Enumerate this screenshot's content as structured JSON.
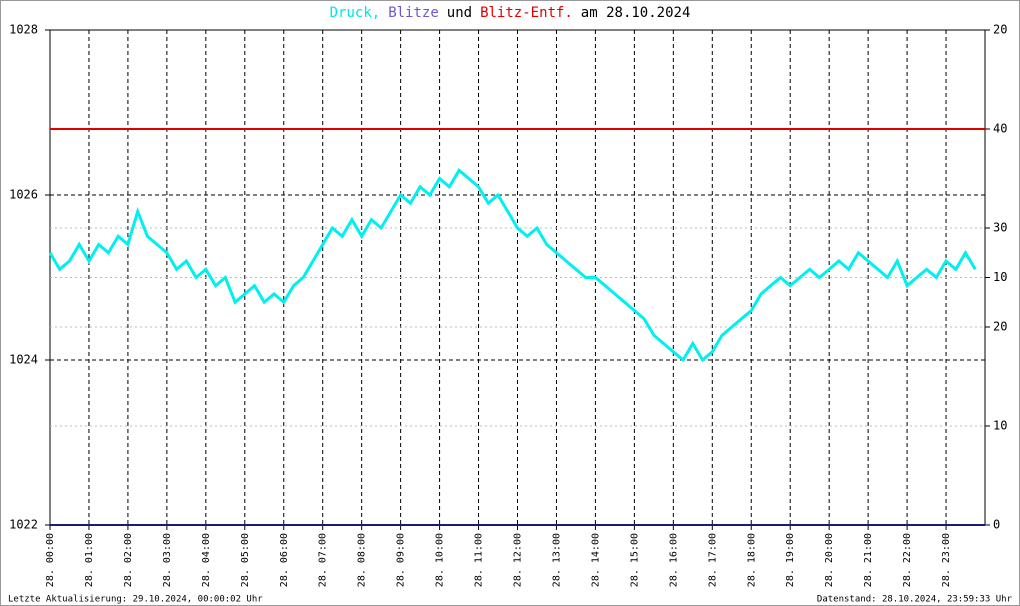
{
  "chart_data": {
    "type": "line",
    "title": [
      {
        "text": "Druck,",
        "color": "#00e5e5"
      },
      {
        "text": "Blitze",
        "color": "#6a5acd"
      },
      {
        "text": "und",
        "color": "#000000"
      },
      {
        "text": "Blitz-Entf.",
        "color": "#e00000"
      },
      {
        "text": "am 28.10.2024",
        "color": "#000000"
      }
    ],
    "xlim": [
      0,
      24
    ],
    "xticks": [
      {
        "value": 0,
        "label": "28. 00:00"
      },
      {
        "value": 1,
        "label": "28. 01:00"
      },
      {
        "value": 2,
        "label": "28. 02:00"
      },
      {
        "value": 3,
        "label": "28. 03:00"
      },
      {
        "value": 4,
        "label": "28. 04:00"
      },
      {
        "value": 5,
        "label": "28. 05:00"
      },
      {
        "value": 6,
        "label": "28. 06:00"
      },
      {
        "value": 7,
        "label": "28. 07:00"
      },
      {
        "value": 8,
        "label": "28. 08:00"
      },
      {
        "value": 9,
        "label": "28. 09:00"
      },
      {
        "value": 10,
        "label": "28. 10:00"
      },
      {
        "value": 11,
        "label": "28. 11:00"
      },
      {
        "value": 12,
        "label": "28. 12:00"
      },
      {
        "value": 13,
        "label": "28. 13:00"
      },
      {
        "value": 14,
        "label": "28. 14:00"
      },
      {
        "value": 15,
        "label": "28. 15:00"
      },
      {
        "value": 16,
        "label": "28. 16:00"
      },
      {
        "value": 17,
        "label": "28. 17:00"
      },
      {
        "value": 18,
        "label": "28. 18:00"
      },
      {
        "value": 19,
        "label": "28. 19:00"
      },
      {
        "value": 20,
        "label": "28. 20:00"
      },
      {
        "value": 21,
        "label": "28. 21:00"
      },
      {
        "value": 22,
        "label": "28. 22:00"
      },
      {
        "value": 23,
        "label": "28. 23:00"
      }
    ],
    "ylim": [
      1022,
      1028
    ],
    "yticks": [
      1022,
      1024,
      1026,
      1028
    ],
    "y2lim": [
      0,
      20
    ],
    "y2ticks": [
      10,
      20
    ],
    "y3lim": [
      0,
      50
    ],
    "y3ticks": [
      0,
      10,
      20,
      30,
      40
    ],
    "grid": true,
    "series": [
      {
        "name": "Druck",
        "color": "#00f0f0",
        "axis": "y",
        "x": [
          0,
          0.25,
          0.5,
          0.75,
          1,
          1.25,
          1.5,
          1.75,
          2,
          2.25,
          2.5,
          2.75,
          3,
          3.25,
          3.5,
          3.75,
          4,
          4.25,
          4.5,
          4.75,
          5,
          5.25,
          5.5,
          5.75,
          6,
          6.25,
          6.5,
          6.75,
          7,
          7.25,
          7.5,
          7.75,
          8,
          8.25,
          8.5,
          8.75,
          9,
          9.25,
          9.5,
          9.75,
          10,
          10.25,
          10.5,
          10.75,
          11,
          11.25,
          11.5,
          11.75,
          12,
          12.25,
          12.5,
          12.75,
          13,
          13.25,
          13.5,
          13.75,
          14,
          14.25,
          14.5,
          14.75,
          15,
          15.25,
          15.5,
          15.75,
          16,
          16.25,
          16.5,
          16.75,
          17,
          17.25,
          17.5,
          17.75,
          18,
          18.25,
          18.5,
          18.75,
          19,
          19.25,
          19.5,
          19.75,
          20,
          20.25,
          20.5,
          20.75,
          21,
          21.25,
          21.5,
          21.75,
          22,
          22.25,
          22.5,
          22.75,
          23,
          23.25,
          23.5,
          23.75
        ],
        "values": [
          1025.3,
          1025.1,
          1025.2,
          1025.4,
          1025.2,
          1025.4,
          1025.3,
          1025.5,
          1025.4,
          1025.8,
          1025.5,
          1025.4,
          1025.3,
          1025.1,
          1025.2,
          1025.0,
          1025.1,
          1024.9,
          1025.0,
          1024.7,
          1024.8,
          1024.9,
          1024.7,
          1024.8,
          1024.7,
          1024.9,
          1025.0,
          1025.2,
          1025.4,
          1025.6,
          1025.5,
          1025.7,
          1025.5,
          1025.7,
          1025.6,
          1025.8,
          1026.0,
          1025.9,
          1026.1,
          1026.0,
          1026.2,
          1026.1,
          1026.3,
          1026.2,
          1026.1,
          1025.9,
          1026.0,
          1025.8,
          1025.6,
          1025.5,
          1025.6,
          1025.4,
          1025.3,
          1025.2,
          1025.1,
          1025.0,
          1025.0,
          1024.9,
          1024.8,
          1024.7,
          1024.6,
          1024.5,
          1024.3,
          1024.2,
          1024.1,
          1024.0,
          1024.2,
          1024.0,
          1024.1,
          1024.3,
          1024.4,
          1024.5,
          1024.6,
          1024.8,
          1024.9,
          1025.0,
          1024.9,
          1025.0,
          1025.1,
          1025.0,
          1025.1,
          1025.2,
          1025.1,
          1025.3,
          1025.2,
          1025.1,
          1025.0,
          1025.2,
          1024.9,
          1025.0,
          1025.1,
          1025.0,
          1025.2,
          1025.1,
          1025.3,
          1025.1
        ]
      },
      {
        "name": "Blitze",
        "color": "#1a1a7a",
        "axis": "y2",
        "x": [
          0,
          24
        ],
        "values": [
          0,
          0
        ]
      },
      {
        "name": "Blitz-Entf.",
        "color": "#e00000",
        "axis": "y3",
        "x": [
          0,
          24
        ],
        "values": [
          40,
          40
        ]
      }
    ],
    "footer_left": "Letzte Aktualisierung: 29.10.2024, 00:00:02 Uhr",
    "footer_right": "Datenstand: 28.10.2024, 23:59:33 Uhr"
  }
}
